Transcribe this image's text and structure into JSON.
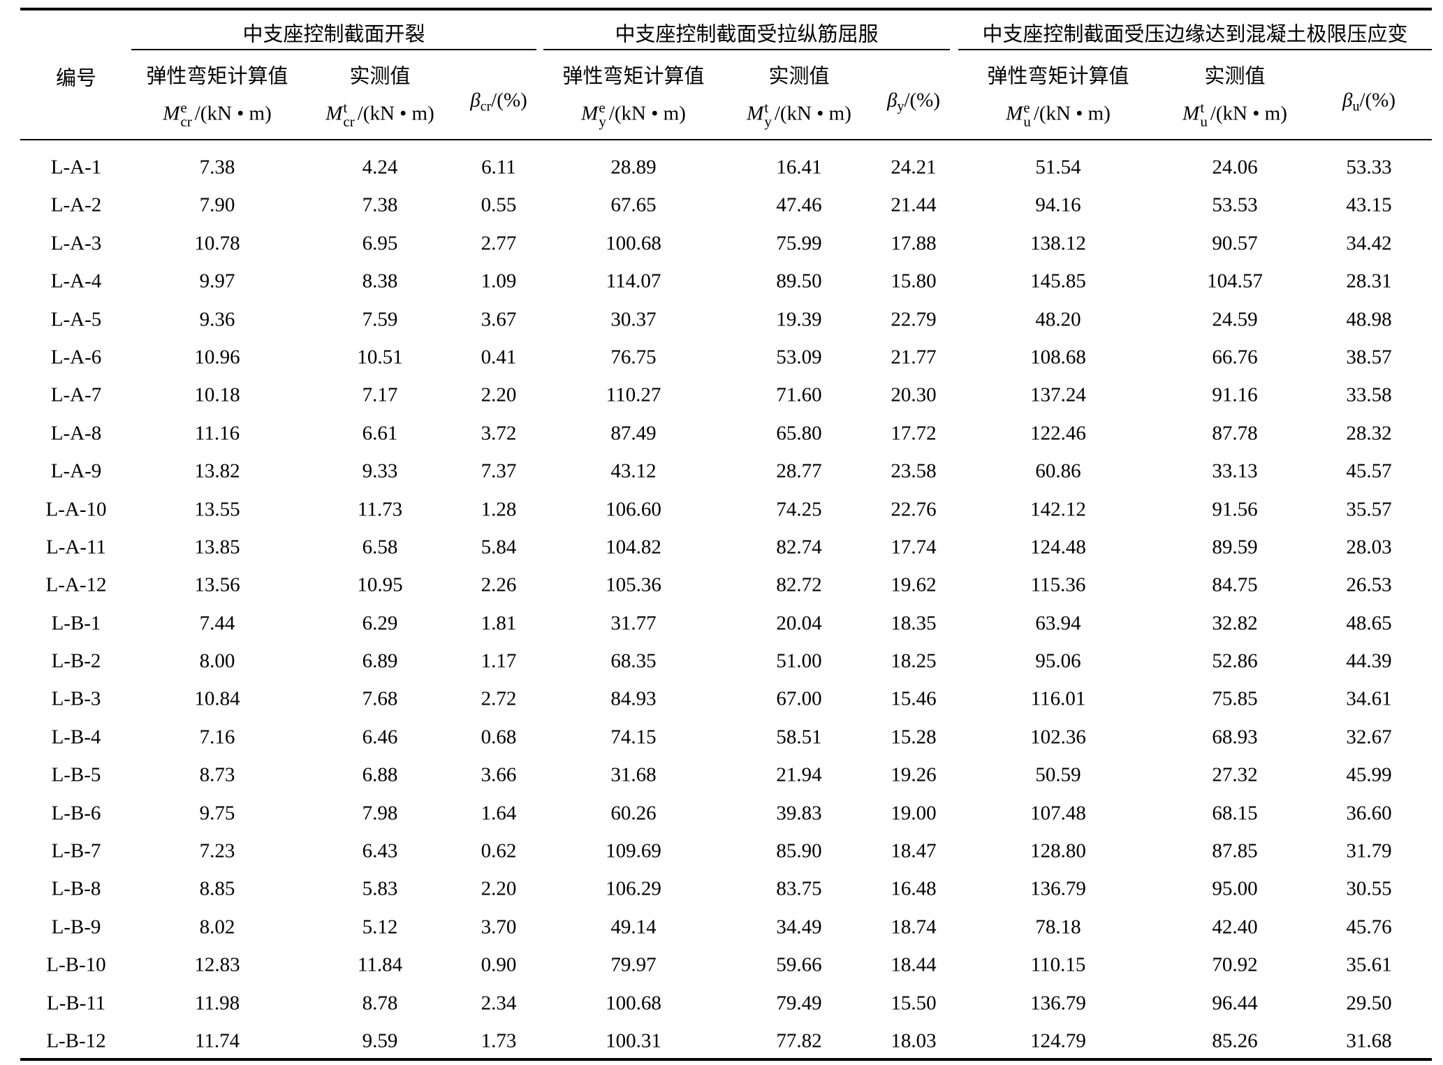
{
  "table": {
    "id_header": "编号",
    "groups": [
      {
        "title": "中支座控制截面开裂",
        "columns": [
          {
            "label": "弹性弯矩计算值",
            "symbol": "M",
            "sup": "e",
            "sub": "cr",
            "unit": "/(kN • m)"
          },
          {
            "label": "实测值",
            "symbol": "M",
            "sup": "t",
            "sub": "cr",
            "unit": "/(kN • m)"
          },
          {
            "symbol": "β",
            "sub": "cr",
            "unit": "/(%)"
          }
        ]
      },
      {
        "title": "中支座控制截面受拉纵筋屈服",
        "columns": [
          {
            "label": "弹性弯矩计算值",
            "symbol": "M",
            "sup": "e",
            "sub": "y",
            "unit": "/(kN • m)"
          },
          {
            "label": "实测值",
            "symbol": "M",
            "sup": "t",
            "sub": "y",
            "unit": "/(kN • m)"
          },
          {
            "symbol": "β",
            "sub": "y",
            "unit": "/(%)"
          }
        ]
      },
      {
        "title": "中支座控制截面受压边缘达到混凝土极限压应变",
        "columns": [
          {
            "label": "弹性弯矩计算值",
            "symbol": "M",
            "sup": "e",
            "sub": "u",
            "unit": "/(kN • m)"
          },
          {
            "label": "实测值",
            "symbol": "M",
            "sup": "t",
            "sub": "u",
            "unit": "/(kN • m)"
          },
          {
            "symbol": "β",
            "sub": "u",
            "unit": "/(%)"
          }
        ]
      }
    ],
    "rows": [
      [
        "L-A-1",
        "7.38",
        "4.24",
        "6.11",
        "28.89",
        "16.41",
        "24.21",
        "51.54",
        "24.06",
        "53.33"
      ],
      [
        "L-A-2",
        "7.90",
        "7.38",
        "0.55",
        "67.65",
        "47.46",
        "21.44",
        "94.16",
        "53.53",
        "43.15"
      ],
      [
        "L-A-3",
        "10.78",
        "6.95",
        "2.77",
        "100.68",
        "75.99",
        "17.88",
        "138.12",
        "90.57",
        "34.42"
      ],
      [
        "L-A-4",
        "9.97",
        "8.38",
        "1.09",
        "114.07",
        "89.50",
        "15.80",
        "145.85",
        "104.57",
        "28.31"
      ],
      [
        "L-A-5",
        "9.36",
        "7.59",
        "3.67",
        "30.37",
        "19.39",
        "22.79",
        "48.20",
        "24.59",
        "48.98"
      ],
      [
        "L-A-6",
        "10.96",
        "10.51",
        "0.41",
        "76.75",
        "53.09",
        "21.77",
        "108.68",
        "66.76",
        "38.57"
      ],
      [
        "L-A-7",
        "10.18",
        "7.17",
        "2.20",
        "110.27",
        "71.60",
        "20.30",
        "137.24",
        "91.16",
        "33.58"
      ],
      [
        "L-A-8",
        "11.16",
        "6.61",
        "3.72",
        "87.49",
        "65.80",
        "17.72",
        "122.46",
        "87.78",
        "28.32"
      ],
      [
        "L-A-9",
        "13.82",
        "9.33",
        "7.37",
        "43.12",
        "28.77",
        "23.58",
        "60.86",
        "33.13",
        "45.57"
      ],
      [
        "L-A-10",
        "13.55",
        "11.73",
        "1.28",
        "106.60",
        "74.25",
        "22.76",
        "142.12",
        "91.56",
        "35.57"
      ],
      [
        "L-A-11",
        "13.85",
        "6.58",
        "5.84",
        "104.82",
        "82.74",
        "17.74",
        "124.48",
        "89.59",
        "28.03"
      ],
      [
        "L-A-12",
        "13.56",
        "10.95",
        "2.26",
        "105.36",
        "82.72",
        "19.62",
        "115.36",
        "84.75",
        "26.53"
      ],
      [
        "L-B-1",
        "7.44",
        "6.29",
        "1.81",
        "31.77",
        "20.04",
        "18.35",
        "63.94",
        "32.82",
        "48.65"
      ],
      [
        "L-B-2",
        "8.00",
        "6.89",
        "1.17",
        "68.35",
        "51.00",
        "18.25",
        "95.06",
        "52.86",
        "44.39"
      ],
      [
        "L-B-3",
        "10.84",
        "7.68",
        "2.72",
        "84.93",
        "67.00",
        "15.46",
        "116.01",
        "75.85",
        "34.61"
      ],
      [
        "L-B-4",
        "7.16",
        "6.46",
        "0.68",
        "74.15",
        "58.51",
        "15.28",
        "102.36",
        "68.93",
        "32.67"
      ],
      [
        "L-B-5",
        "8.73",
        "6.88",
        "3.66",
        "31.68",
        "21.94",
        "19.26",
        "50.59",
        "27.32",
        "45.99"
      ],
      [
        "L-B-6",
        "9.75",
        "7.98",
        "1.64",
        "60.26",
        "39.83",
        "19.00",
        "107.48",
        "68.15",
        "36.60"
      ],
      [
        "L-B-7",
        "7.23",
        "6.43",
        "0.62",
        "109.69",
        "85.90",
        "18.47",
        "128.80",
        "87.85",
        "31.79"
      ],
      [
        "L-B-8",
        "8.85",
        "5.83",
        "2.20",
        "106.29",
        "83.75",
        "16.48",
        "136.79",
        "95.00",
        "30.55"
      ],
      [
        "L-B-9",
        "8.02",
        "5.12",
        "3.70",
        "49.14",
        "34.49",
        "18.74",
        "78.18",
        "42.40",
        "45.76"
      ],
      [
        "L-B-10",
        "12.83",
        "11.84",
        "0.90",
        "79.97",
        "59.66",
        "18.44",
        "110.15",
        "70.92",
        "35.61"
      ],
      [
        "L-B-11",
        "11.98",
        "8.78",
        "2.34",
        "100.68",
        "79.49",
        "15.50",
        "136.79",
        "96.44",
        "29.50"
      ],
      [
        "L-B-12",
        "11.74",
        "9.59",
        "1.73",
        "100.31",
        "77.82",
        "18.03",
        "124.79",
        "85.26",
        "31.68"
      ]
    ]
  }
}
